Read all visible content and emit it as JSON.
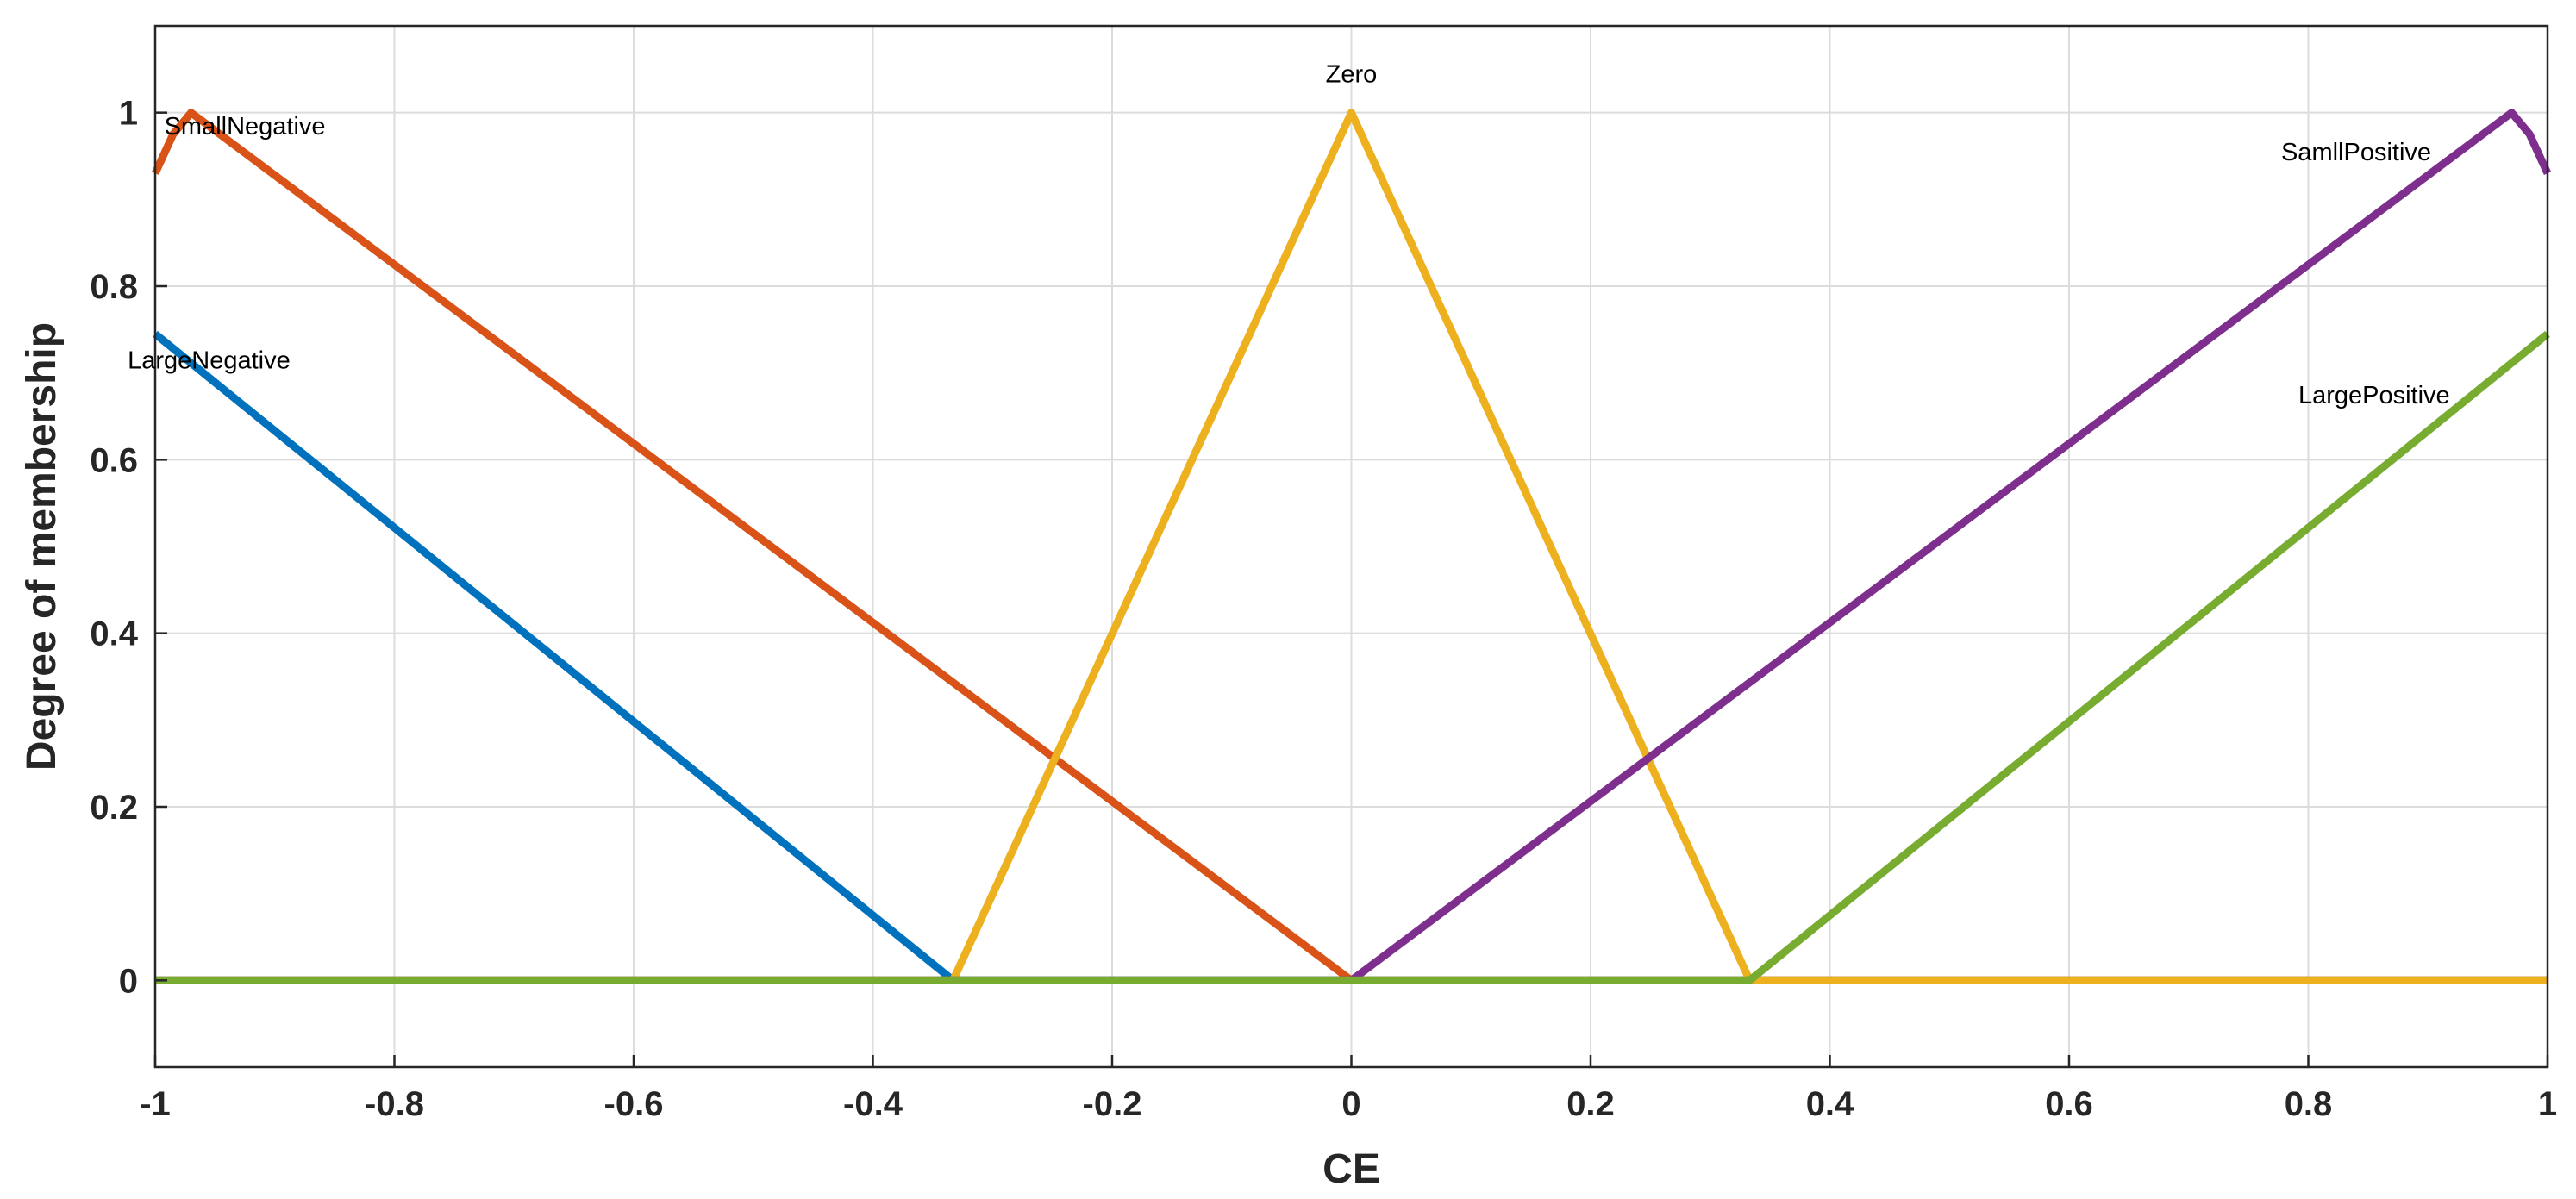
{
  "chart_data": {
    "type": "line",
    "xlabel": "CE",
    "ylabel": "Degree of membership",
    "xlim": [
      -1,
      1
    ],
    "ylim": [
      -0.1,
      1.1
    ],
    "x_ticks": [
      {
        "value": -1,
        "label": "-1"
      },
      {
        "value": -0.8,
        "label": "-0.8"
      },
      {
        "value": -0.6,
        "label": "-0.6"
      },
      {
        "value": -0.4,
        "label": "-0.4"
      },
      {
        "value": -0.2,
        "label": "-0.2"
      },
      {
        "value": 0,
        "label": "0"
      },
      {
        "value": 0.2,
        "label": "0.2"
      },
      {
        "value": 0.4,
        "label": "0.4"
      },
      {
        "value": 0.6,
        "label": "0.6"
      },
      {
        "value": 0.8,
        "label": "0.8"
      },
      {
        "value": 1,
        "label": "1"
      }
    ],
    "y_ticks": [
      {
        "value": 0,
        "label": "0"
      },
      {
        "value": 0.2,
        "label": "0.2"
      },
      {
        "value": 0.4,
        "label": "0.4"
      },
      {
        "value": 0.6,
        "label": "0.6"
      },
      {
        "value": 0.8,
        "label": "0.8"
      },
      {
        "value": 1,
        "label": "1"
      }
    ],
    "grid": true,
    "series": [
      {
        "name": "LargeNegative",
        "color": "#0072BD",
        "x": [
          -1,
          -0.333,
          1
        ],
        "y": [
          0.745,
          0,
          0
        ],
        "label_at": [
          -0.955,
          0.715
        ]
      },
      {
        "name": "SmallNegative",
        "color": "#D95319",
        "x": [
          -1,
          -0.985,
          -0.97,
          0,
          1
        ],
        "y": [
          0.93,
          0.975,
          1,
          0,
          0
        ],
        "label_at": [
          -0.925,
          0.985
        ]
      },
      {
        "name": "Zero",
        "color": "#EDB120",
        "x": [
          -1,
          -0.333,
          0,
          0.333,
          1
        ],
        "y": [
          0,
          0,
          1,
          0,
          0
        ],
        "label_at": [
          0,
          1.045
        ]
      },
      {
        "name": "SamllPositive",
        "color": "#7E2F8E",
        "x": [
          -1,
          0,
          0.97,
          0.985,
          1
        ],
        "y": [
          0,
          0,
          1,
          0.975,
          0.93
        ],
        "label_at": [
          0.84,
          0.955
        ]
      },
      {
        "name": "LargePositive",
        "color": "#77AC30",
        "x": [
          -1,
          0.333,
          1
        ],
        "y": [
          0,
          0,
          0.745
        ],
        "label_at": [
          0.855,
          0.675
        ]
      }
    ],
    "legend": "none"
  }
}
